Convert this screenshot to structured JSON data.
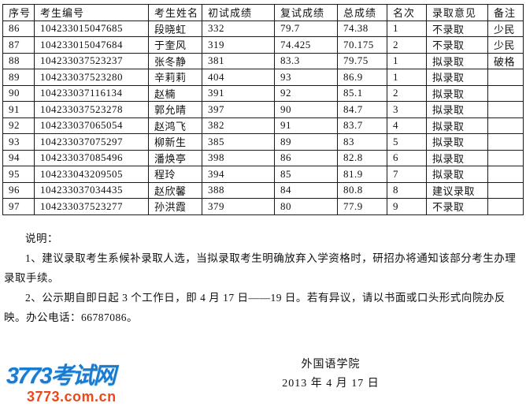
{
  "table": {
    "headers": [
      "序号",
      "考生编号",
      "考生姓名",
      "初试成绩",
      "复试成绩",
      "总成绩",
      "名次",
      "录取意见",
      "备注"
    ],
    "rows": [
      [
        "86",
        "104233015047685",
        "段晓虹",
        "332",
        "79.7",
        "74.38",
        "1",
        "不录取",
        "少民"
      ],
      [
        "87",
        "104233015047684",
        "于奎风",
        "319",
        "74.425",
        "70.175",
        "2",
        "不录取",
        "少民"
      ],
      [
        "88",
        "104233037523237",
        "张冬静",
        "381",
        "83.3",
        "79.75",
        "1",
        "拟录取",
        "破格"
      ],
      [
        "89",
        "104233037523280",
        "辛莉莉",
        "404",
        "93",
        "86.9",
        "1",
        "拟录取",
        ""
      ],
      [
        "90",
        "104233037116134",
        "赵楠",
        "391",
        "92",
        "85.1",
        "2",
        "拟录取",
        ""
      ],
      [
        "91",
        "104233037523278",
        "郭允晴",
        "397",
        "90",
        "84.7",
        "3",
        "拟录取",
        ""
      ],
      [
        "92",
        "104233037065054",
        "赵鸿飞",
        "382",
        "91",
        "83.7",
        "4",
        "拟录取",
        ""
      ],
      [
        "93",
        "104233037075297",
        "柳新生",
        "385",
        "89",
        "83",
        "5",
        "拟录取",
        ""
      ],
      [
        "94",
        "104233037085496",
        "潘焕亭",
        "398",
        "86",
        "82.8",
        "6",
        "拟录取",
        ""
      ],
      [
        "95",
        "104233043209505",
        "程玲",
        "394",
        "85",
        "81.9",
        "7",
        "拟录取",
        ""
      ],
      [
        "96",
        "104233037034435",
        "赵欣馨",
        "388",
        "84",
        "80.8",
        "8",
        "建议录取",
        ""
      ],
      [
        "97",
        "104233037523277",
        "孙洪霞",
        "379",
        "80",
        "77.9",
        "9",
        "不录取",
        ""
      ]
    ]
  },
  "notes": {
    "heading": "说明：",
    "items": [
      "1、建议录取考生系候补录取人选，当拟录取考生明确放弃入学资格时，研招办将通知该部分考生办理录取手续。",
      "2、公示期自即日起 3 个工作日，即 4 月 17 日——19 日。若有异议，请以书面或口头形式向院办反映。办公电话：66787086。"
    ]
  },
  "signature": {
    "org": "外国语学院",
    "date": "2013 年 4 月 17 日"
  },
  "watermark": {
    "title": "3773考试网",
    "domain": "3773.com.cn",
    "title_color": "#1a7cd0",
    "domain_color": "#e8491d"
  }
}
